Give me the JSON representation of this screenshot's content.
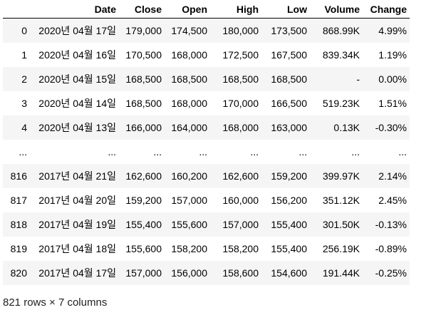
{
  "table": {
    "columns": [
      "",
      "Date",
      "Close",
      "Open",
      "High",
      "Low",
      "Volume",
      "Change"
    ],
    "rows": [
      [
        "0",
        "2020년 04월 17일",
        "179,000",
        "174,500",
        "180,000",
        "173,500",
        "868.99K",
        "4.99%"
      ],
      [
        "1",
        "2020년 04월 16일",
        "170,500",
        "168,000",
        "172,500",
        "167,500",
        "839.34K",
        "1.19%"
      ],
      [
        "2",
        "2020년 04월 15일",
        "168,500",
        "168,500",
        "168,500",
        "168,500",
        "-",
        "0.00%"
      ],
      [
        "3",
        "2020년 04월 14일",
        "168,500",
        "168,000",
        "170,000",
        "166,500",
        "519.23K",
        "1.51%"
      ],
      [
        "4",
        "2020년 04월 13일",
        "166,000",
        "164,000",
        "168,000",
        "163,000",
        "0.13K",
        "-0.30%"
      ],
      [
        "...",
        "...",
        "...",
        "...",
        "...",
        "...",
        "...",
        "..."
      ],
      [
        "816",
        "2017년 04월 21일",
        "162,600",
        "160,200",
        "162,600",
        "159,200",
        "399.97K",
        "2.14%"
      ],
      [
        "817",
        "2017년 04월 20일",
        "159,200",
        "157,000",
        "160,000",
        "156,200",
        "351.12K",
        "2.45%"
      ],
      [
        "818",
        "2017년 04월 19일",
        "155,400",
        "155,600",
        "157,000",
        "155,400",
        "301.50K",
        "-0.13%"
      ],
      [
        "819",
        "2017년 04월 18일",
        "155,600",
        "158,200",
        "158,200",
        "155,400",
        "256.19K",
        "-0.89%"
      ],
      [
        "820",
        "2017년 04월 17일",
        "157,000",
        "156,000",
        "158,600",
        "154,600",
        "191.44K",
        "-0.25%"
      ]
    ]
  },
  "shape_text": "821 rows × 7 columns"
}
